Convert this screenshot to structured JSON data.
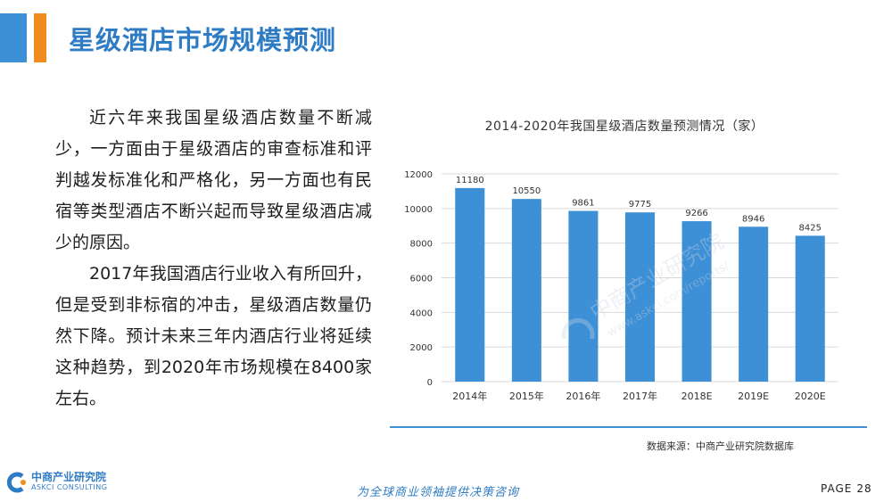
{
  "header": {
    "title": "星级酒店市场规模预测"
  },
  "body": {
    "paragraph1": "近六年来我国星级酒店数量不断减少，一方面由于星级酒店的审查标准和评判越发标准化和严格化，另一方面也有民宿等类型酒店不断兴起而导致星级酒店减少的原因。",
    "paragraph2": "2017年我国酒店行业收入有所回升，但是受到非标宿的冲击，星级酒店数量仍然下降。预计未来三年内酒店行业将延续这种趋势，到2020年市场规模在8400家左右。"
  },
  "chart_data": {
    "type": "bar",
    "title": "2014-2020年我国星级酒店数量预测情况（家）",
    "categories": [
      "2014年",
      "2015年",
      "2016年",
      "2017年",
      "2018E",
      "2019E",
      "2020E"
    ],
    "values": [
      11180,
      10550,
      9861,
      9775,
      9266,
      8946,
      8425
    ],
    "ylim": [
      0,
      12000
    ],
    "yticks": [
      0,
      2000,
      4000,
      6000,
      8000,
      10000,
      12000
    ],
    "grid": true,
    "bar_color": "#3d8fd6"
  },
  "source": "数据来源：中商产业研究院数据库",
  "footer": {
    "logo_cn": "中商产业研究院",
    "logo_en": "ASKCI CONSULTING",
    "slogan": "为全球商业领袖提供决策咨询",
    "page_label": "PAGE",
    "page_number": "28"
  },
  "watermark": {
    "cn": "中商产业研究院",
    "url": "www.askci.com/reports/"
  },
  "colors": {
    "brand_blue": "#3d8fd6",
    "accent_orange": "#f08b1d",
    "title_blue": "#2f7cc4"
  }
}
